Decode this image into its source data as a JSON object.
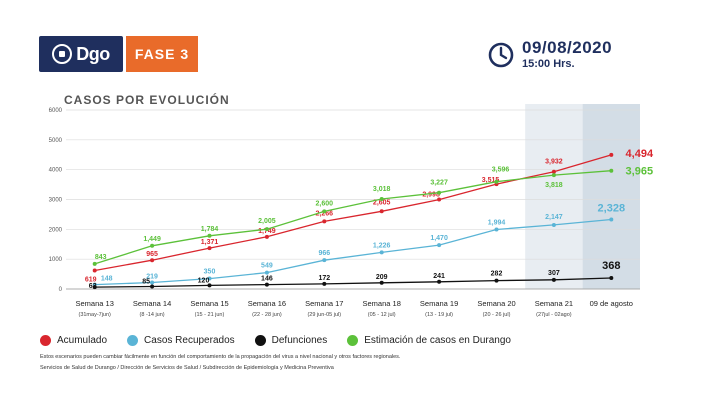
{
  "header": {
    "logo_text": "Dgo",
    "phase_label": "FASE 3",
    "date": "09/08/2020",
    "time": "15:00 Hrs."
  },
  "chart_data": {
    "type": "line",
    "title": "CASOS POR EVOLUCIÓN",
    "ylim": [
      0,
      6000
    ],
    "y_ticks": [
      0,
      1000,
      2000,
      3000,
      4000,
      5000,
      6000
    ],
    "categories": [
      "Semana 13",
      "Semana 14",
      "Semana 15",
      "Semana 16",
      "Semana 17",
      "Semana 18",
      "Semana 19",
      "Semana 20",
      "Semana 21",
      "09 de agosto"
    ],
    "category_ranges": [
      "(31may-7jun)",
      "(8 -14 jun)",
      "(15 - 21 jun)",
      "(22 - 28 jun)",
      "(29 jun-05 jul)",
      "(05 - 12 jul)",
      "(13 - 19 jul)",
      "(20 - 26 jul)",
      "(27jul - 02ago)",
      ""
    ],
    "series": [
      {
        "name": "Acumulado",
        "color": "#d9262e",
        "values": [
          619,
          965,
          1371,
          1749,
          2266,
          2605,
          2998,
          3515,
          3932,
          4494
        ]
      },
      {
        "name": "Casos Recuperados",
        "color": "#5ab4d6",
        "values": [
          148,
          219,
          350,
          549,
          966,
          1226,
          1470,
          1994,
          2147,
          2328
        ]
      },
      {
        "name": "Defunciones",
        "color": "#111111",
        "values": [
          63,
          85,
          120,
          146,
          172,
          209,
          241,
          282,
          307,
          368
        ]
      },
      {
        "name": "Estimación de casos en Durango",
        "color": "#5cc13a",
        "values": [
          843,
          1449,
          1784,
          2005,
          2600,
          3018,
          3227,
          3596,
          3818,
          3965
        ]
      }
    ],
    "grid": true,
    "legend": "bottom"
  },
  "footer": {
    "note_1": "Estos escenarios pueden cambiar fácilmente en función del comportamiento de la propagación del virus a nivel nacional y otros factores regionales.",
    "note_2": "Servicios de Salud de Durango / Dirección de Servicios de Salud / Subdirección de Epidemiología y Medicina Preventiva"
  }
}
